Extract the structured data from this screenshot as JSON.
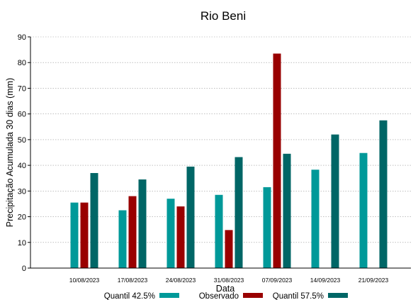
{
  "chart_data": {
    "type": "bar",
    "title": "Rio Beni",
    "xlabel": "Data",
    "ylabel": "Precipitação Acumulada 30 dias (mm)",
    "ylim": [
      0,
      90
    ],
    "yticks": [
      0,
      10,
      20,
      30,
      40,
      50,
      60,
      70,
      80,
      90
    ],
    "grid": true,
    "legend_position": "bottom",
    "categories": [
      "10/08/2023",
      "17/08/2023",
      "24/08/2023",
      "31/08/2023",
      "07/09/2023",
      "14/09/2023",
      "21/09/2023"
    ],
    "series": [
      {
        "name": "Quantil 42.5%",
        "color": "#009999",
        "values": [
          25.5,
          22.5,
          27.0,
          28.5,
          31.5,
          38.3,
          44.8
        ]
      },
      {
        "name": "Observado",
        "color": "#990000",
        "values": [
          25.5,
          28.0,
          24.0,
          14.8,
          83.5,
          null,
          null
        ]
      },
      {
        "name": "Quantil 57.5%",
        "color": "#006666",
        "values": [
          37.0,
          34.5,
          39.5,
          43.2,
          44.5,
          52.0,
          57.5
        ]
      }
    ]
  }
}
